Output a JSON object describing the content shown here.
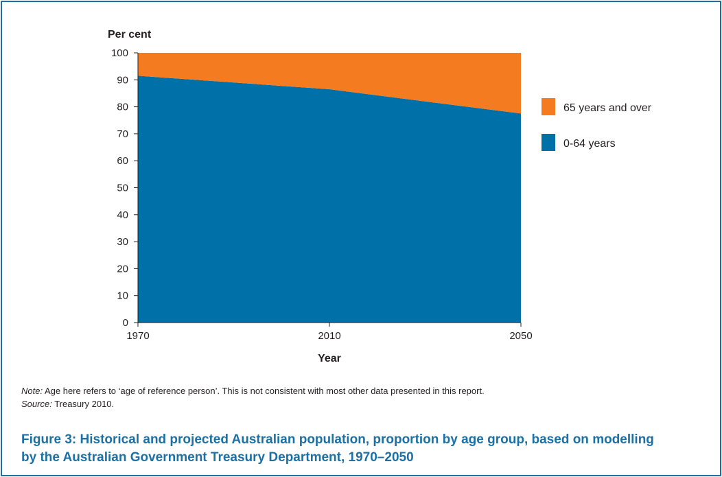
{
  "chart_data": {
    "type": "area",
    "stacked": true,
    "ylabel": "Per cent",
    "xlabel": "Year",
    "ylim": [
      0,
      100
    ],
    "yticks": [
      0,
      10,
      20,
      30,
      40,
      50,
      60,
      70,
      80,
      90,
      100
    ],
    "x": [
      1970,
      2010,
      2050
    ],
    "xticks": [
      "1970",
      "2010",
      "2050"
    ],
    "series": [
      {
        "name": "0-64 years",
        "values": [
          91.5,
          86.5,
          77.5
        ],
        "color": "#0070a8"
      },
      {
        "name": "65 years and over",
        "values": [
          8.5,
          13.5,
          22.5
        ],
        "color": "#f47b20"
      }
    ],
    "legend_placement": "right",
    "legend_order": [
      "65 years and over",
      "0-64 years"
    ],
    "grid": false
  },
  "note": {
    "label": "Note:",
    "text": " Age here refers to ‘age of reference person’. This is not consistent with most other data presented in this report."
  },
  "source": {
    "label": "Source:",
    "text": " Treasury 2010."
  },
  "caption": "Figure 3: Historical and projected Australian population, proportion by age group, based on modelling by the Australian Government Treasury Department, 1970–2050",
  "colors": {
    "frame": "#1b71a5",
    "caption": "#1b71a5"
  }
}
